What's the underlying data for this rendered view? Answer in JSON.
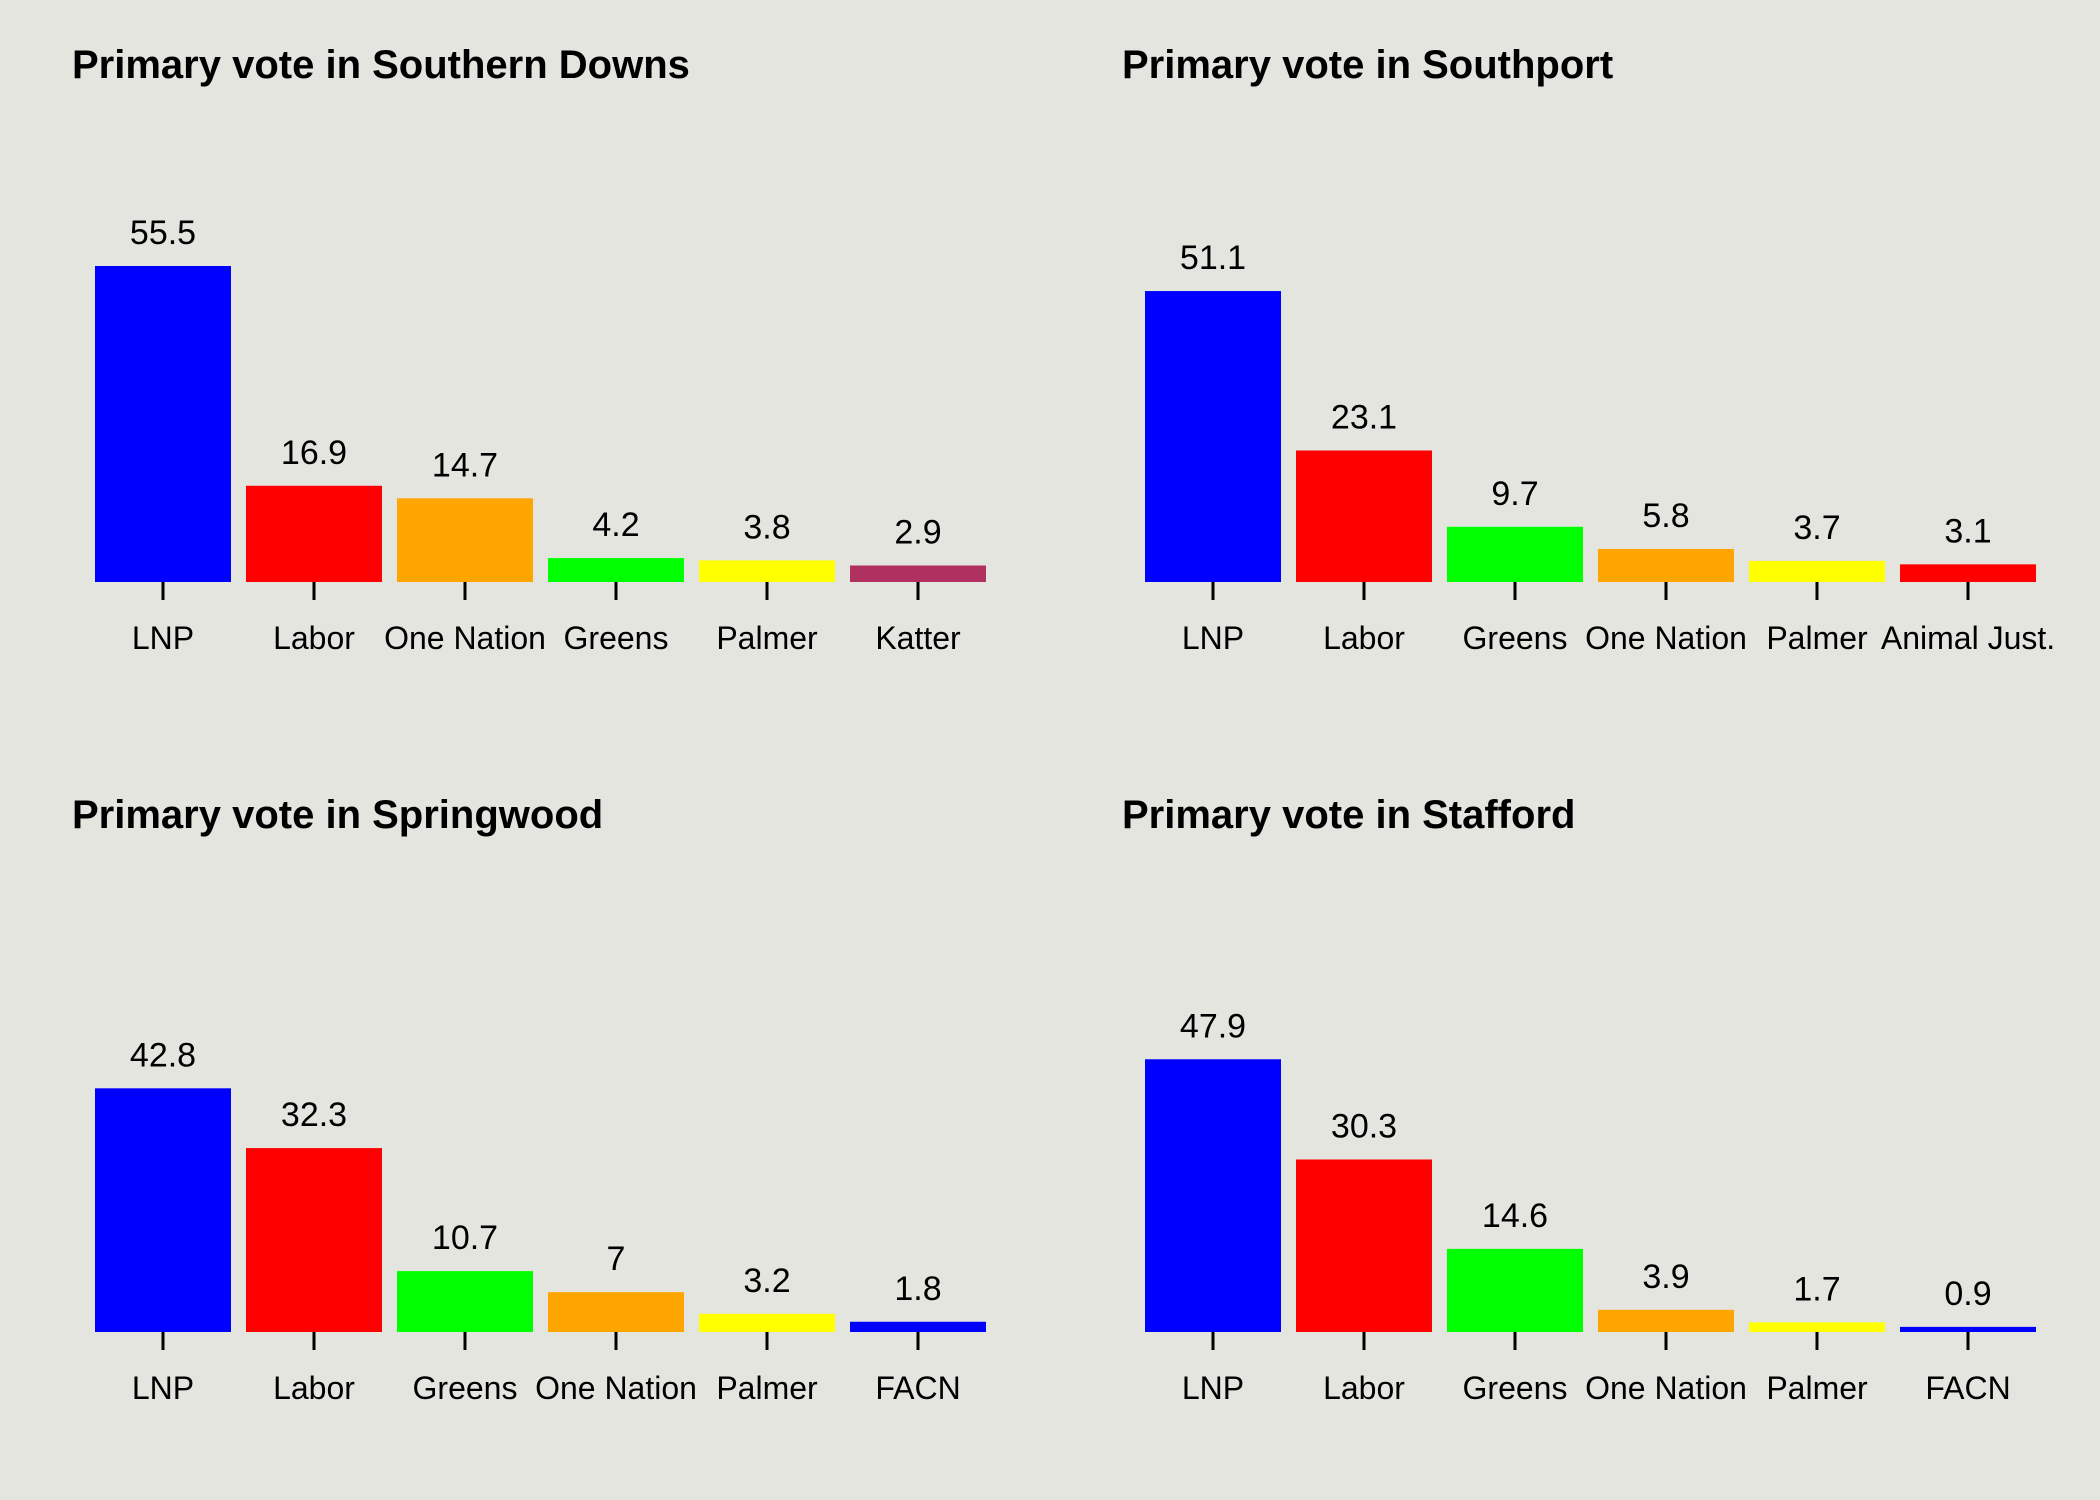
{
  "chart_data": [
    {
      "type": "bar",
      "title": "Primary vote in Southern Downs",
      "categories": [
        "LNP",
        "Labor",
        "One Nation",
        "Greens",
        "Palmer",
        "Katter"
      ],
      "values": [
        55.5,
        16.9,
        14.7,
        4.2,
        3.8,
        2.9
      ],
      "colors": [
        "#0000ff",
        "#ff0000",
        "#ffa500",
        "#00ff00",
        "#ffff00",
        "#b03060"
      ],
      "xlabel": "",
      "ylabel": "",
      "grid": false,
      "legend": "none"
    },
    {
      "type": "bar",
      "title": "Primary vote in Southport",
      "categories": [
        "LNP",
        "Labor",
        "Greens",
        "One Nation",
        "Palmer",
        "Animal Just."
      ],
      "values": [
        51.1,
        23.1,
        9.7,
        5.8,
        3.7,
        3.1
      ],
      "colors": [
        "#0000ff",
        "#ff0000",
        "#00ff00",
        "#ffa500",
        "#ffff00",
        "#ff0000"
      ],
      "xlabel": "",
      "ylabel": "",
      "grid": false,
      "legend": "none"
    },
    {
      "type": "bar",
      "title": "Primary vote in Springwood",
      "categories": [
        "LNP",
        "Labor",
        "Greens",
        "One Nation",
        "Palmer",
        "FACN"
      ],
      "values": [
        42.8,
        32.3,
        10.7,
        7,
        3.2,
        1.8
      ],
      "colors": [
        "#0000ff",
        "#ff0000",
        "#00ff00",
        "#ffa500",
        "#ffff00",
        "#0000ff"
      ],
      "xlabel": "",
      "ylabel": "",
      "grid": false,
      "legend": "none"
    },
    {
      "type": "bar",
      "title": "Primary vote in Stafford",
      "categories": [
        "LNP",
        "Labor",
        "Greens",
        "One Nation",
        "Palmer",
        "FACN"
      ],
      "values": [
        47.9,
        30.3,
        14.6,
        3.9,
        1.7,
        0.9
      ],
      "colors": [
        "#0000ff",
        "#ff0000",
        "#00ff00",
        "#ffa500",
        "#ffff00",
        "#0000ff"
      ],
      "xlabel": "",
      "ylabel": "",
      "grid": false,
      "legend": "none"
    }
  ]
}
